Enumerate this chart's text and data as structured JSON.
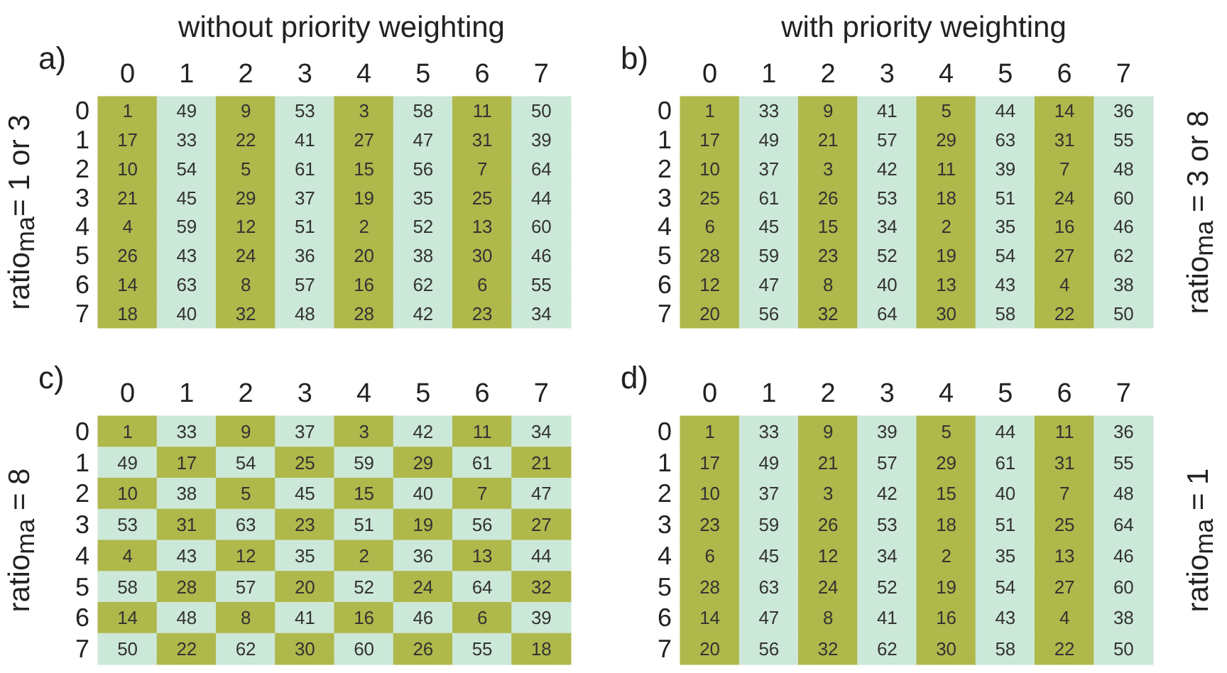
{
  "chart_data": [
    {
      "type": "heatmap",
      "title": "without priority weighting",
      "annotations": [
        "a)"
      ],
      "ylabel": "ratio$_{ma}$= 1 or 3",
      "colors": [
        "#afb84a",
        "#cce8d8"
      ],
      "data_labels": true,
      "categories": [
        "0",
        "1",
        "2",
        "3",
        "4",
        "5",
        "6",
        "7"
      ],
      "y_categories": [
        "0",
        "1",
        "2",
        "3",
        "4",
        "5",
        "6",
        "7"
      ],
      "cells": [
        [
          1,
          49,
          9,
          53,
          3,
          58,
          11,
          50
        ],
        [
          17,
          33,
          22,
          41,
          27,
          47,
          31,
          39
        ],
        [
          10,
          54,
          5,
          61,
          15,
          56,
          7,
          64
        ],
        [
          21,
          45,
          29,
          37,
          19,
          35,
          25,
          44
        ],
        [
          4,
          59,
          12,
          51,
          2,
          52,
          13,
          60
        ],
        [
          26,
          43,
          24,
          36,
          20,
          38,
          30,
          46
        ],
        [
          14,
          63,
          8,
          57,
          16,
          62,
          6,
          55
        ],
        [
          18,
          40,
          32,
          48,
          28,
          42,
          23,
          34
        ]
      ]
    },
    {
      "type": "heatmap",
      "title": "with priority weighting",
      "annotations": [
        "b)"
      ],
      "y2label": "ratio$_{ma}$ = 3 or 8",
      "colors": [
        "#afb84a",
        "#cce8d8"
      ],
      "data_labels": true,
      "categories": [
        "0",
        "1",
        "2",
        "3",
        "4",
        "5",
        "6",
        "7"
      ],
      "y_categories": [
        "0",
        "1",
        "2",
        "3",
        "4",
        "5",
        "6",
        "7"
      ],
      "cells": [
        [
          1,
          33,
          9,
          41,
          5,
          44,
          14,
          36
        ],
        [
          17,
          49,
          21,
          57,
          29,
          63,
          31,
          55
        ],
        [
          10,
          37,
          3,
          42,
          11,
          39,
          7,
          48
        ],
        [
          25,
          61,
          26,
          53,
          18,
          51,
          24,
          60
        ],
        [
          6,
          45,
          15,
          34,
          2,
          35,
          16,
          46
        ],
        [
          28,
          59,
          23,
          52,
          19,
          54,
          27,
          62
        ],
        [
          12,
          47,
          8,
          40,
          13,
          43,
          4,
          38
        ],
        [
          20,
          56,
          32,
          64,
          30,
          58,
          22,
          50
        ]
      ]
    },
    {
      "type": "heatmap",
      "annotations": [
        "c)"
      ],
      "ylabel": "ratio$_{ma}$ = 8",
      "colors": [
        "#afb84a",
        "#cce8d8"
      ],
      "data_labels": true,
      "categories": [
        "0",
        "1",
        "2",
        "3",
        "4",
        "5",
        "6",
        "7"
      ],
      "y_categories": [
        "0",
        "1",
        "2",
        "3",
        "4",
        "5",
        "6",
        "7"
      ],
      "cells": [
        [
          1,
          33,
          9,
          37,
          3,
          42,
          11,
          34
        ],
        [
          49,
          17,
          54,
          25,
          59,
          29,
          61,
          21
        ],
        [
          10,
          38,
          5,
          45,
          15,
          40,
          7,
          47
        ],
        [
          53,
          31,
          63,
          23,
          51,
          19,
          56,
          27
        ],
        [
          4,
          43,
          12,
          35,
          2,
          36,
          13,
          44
        ],
        [
          58,
          28,
          57,
          20,
          52,
          24,
          64,
          32
        ],
        [
          14,
          48,
          8,
          41,
          16,
          46,
          6,
          39
        ],
        [
          50,
          22,
          62,
          30,
          60,
          26,
          55,
          18
        ]
      ]
    },
    {
      "type": "heatmap",
      "annotations": [
        "d)"
      ],
      "y2label": "ratio$_{ma}$ = 1",
      "colors": [
        "#afb84a",
        "#cce8d8"
      ],
      "data_labels": true,
      "categories": [
        "0",
        "1",
        "2",
        "3",
        "4",
        "5",
        "6",
        "7"
      ],
      "y_categories": [
        "0",
        "1",
        "2",
        "3",
        "4",
        "5",
        "6",
        "7"
      ],
      "cells": [
        [
          1,
          33,
          9,
          39,
          5,
          44,
          11,
          36
        ],
        [
          17,
          49,
          21,
          57,
          29,
          61,
          31,
          55
        ],
        [
          10,
          37,
          3,
          42,
          15,
          40,
          7,
          48
        ],
        [
          23,
          59,
          26,
          53,
          18,
          51,
          25,
          64
        ],
        [
          6,
          45,
          12,
          34,
          2,
          35,
          13,
          46
        ],
        [
          28,
          63,
          24,
          52,
          19,
          54,
          27,
          60
        ],
        [
          14,
          47,
          8,
          41,
          16,
          43,
          4,
          38
        ],
        [
          20,
          56,
          32,
          62,
          30,
          58,
          22,
          50
        ]
      ]
    }
  ]
}
